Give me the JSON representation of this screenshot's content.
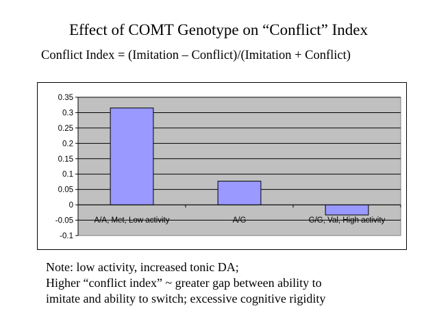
{
  "slide": {
    "title": "Effect of COMT Genotype on “Conflict” Index",
    "subtitle": "Conflict Index = (Imitation – Conflict)/(Imitation + Conflict)",
    "note_lines": [
      "Note: low activity, increased tonic DA;",
      "Higher “conflict index” ~ greater gap between ability to",
      "imitate and ability to switch; excessive cognitive rigidity"
    ]
  },
  "chart_data": {
    "type": "bar",
    "title": "",
    "xlabel": "",
    "ylabel": "",
    "categories": [
      "A/A, Met, Low activity",
      "A/G",
      "G/G, Val, High activity"
    ],
    "values": [
      0.315,
      0.077,
      -0.033
    ],
    "ylim": [
      -0.1,
      0.35
    ],
    "yticks": [
      0.35,
      0.3,
      0.25,
      0.2,
      0.15,
      0.1,
      0.05,
      0,
      -0.05,
      -0.1
    ],
    "ytick_labels": [
      "0.35",
      "0.3",
      "0.25",
      "0.2",
      "0.15",
      "0.1",
      "0.05",
      "0",
      "-0.05",
      "-0.1"
    ],
    "grid": true,
    "legend": "none",
    "colors": {
      "bar_fill": "#9999ff",
      "bar_stroke": "#000000",
      "plot_background": "#c0c0c0",
      "grid": "#000000",
      "text": "#000000"
    }
  }
}
